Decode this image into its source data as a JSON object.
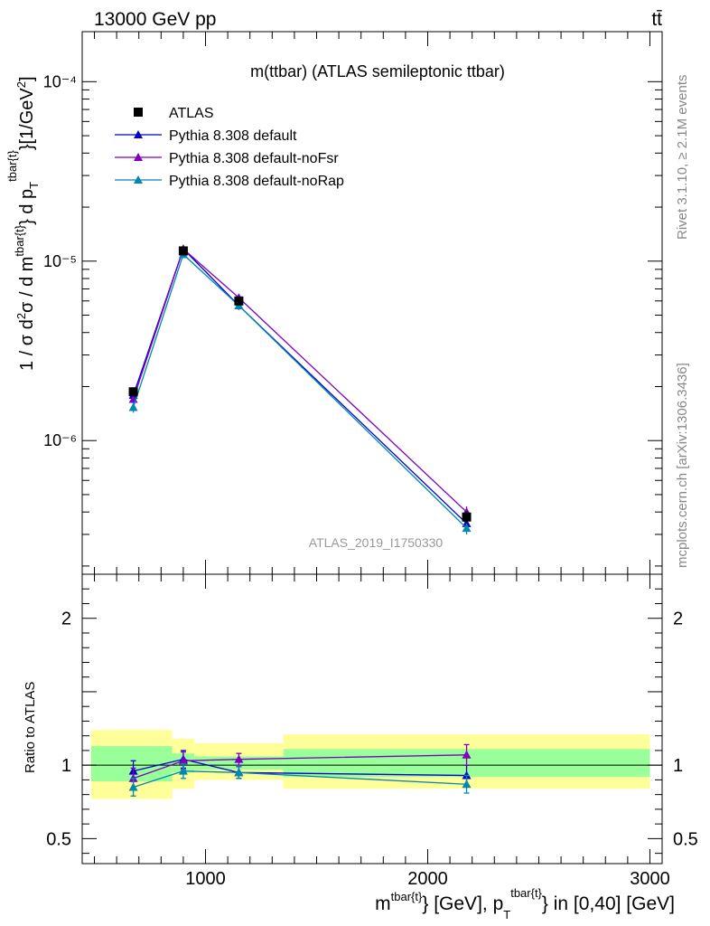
{
  "header": {
    "left": "13000 GeV pp",
    "right": "tt̄"
  },
  "side_text": {
    "rivet": "Rivet 3.1.10, ≥ 2.1M events",
    "mcplots": "mcplots.cern.ch [arXiv:1306.3436]"
  },
  "chart_data": [
    {
      "type": "line",
      "panel": "main",
      "title": "m(ttbar) (ATLAS semileptonic ttbar)",
      "watermark": "ATLAS_2019_I1750330",
      "ylabel": "1 / σ d²σ / d m^tbar{t} d p_T^tbar{t} [1/GeV²]",
      "yscale": "log",
      "ylim": [
        1.8e-07,
        0.00019
      ],
      "y_major_ticks": [
        {
          "value": 0.0001,
          "label": "10⁻⁴"
        },
        {
          "value": 1e-05,
          "label": "10⁻⁵"
        },
        {
          "value": 1e-06,
          "label": "10⁻⁶"
        }
      ],
      "xlim": [
        445,
        3055
      ],
      "legend_position": "top-left",
      "series": [
        {
          "name": "ATLAS",
          "color": "#000000",
          "marker": "square",
          "x": [
            675,
            900,
            1150,
            2175
          ],
          "y": [
            1.87e-06,
            1.14e-05,
            6e-06,
            3.75e-07
          ],
          "yerr": [
            6e-08,
            5e-07,
            3e-07,
            3e-08
          ]
        },
        {
          "name": "Pythia 8.308 default",
          "color": "#0000cc",
          "marker": "triangle",
          "x": [
            675,
            900,
            1150,
            2175
          ],
          "y": [
            1.79e-06,
            1.17e-05,
            5.65e-06,
            3.45e-07
          ],
          "yerr": [
            1.2e-07,
            6e-07,
            3e-07,
            2.5e-08
          ]
        },
        {
          "name": "Pythia 8.308 default-noFsr",
          "color": "#7f00bf",
          "marker": "triangle",
          "x": [
            675,
            900,
            1150,
            2175
          ],
          "y": [
            1.7e-06,
            1.17e-05,
            6.25e-06,
            4e-07
          ],
          "yerr": [
            1.2e-07,
            6e-07,
            3e-07,
            3e-08
          ]
        },
        {
          "name": "Pythia 8.308 default-noRap",
          "color": "#0087b4",
          "marker": "triangle",
          "x": [
            675,
            900,
            1150,
            2175
          ],
          "y": [
            1.53e-06,
            1.09e-05,
            5.65e-06,
            3.25e-07
          ],
          "yerr": [
            1e-07,
            5e-07,
            3e-07,
            2.5e-08
          ]
        }
      ]
    },
    {
      "type": "line",
      "panel": "ratio",
      "ylabel": "Ratio to ATLAS",
      "xlabel": "m^tbar{t} [GeV], p_T^tbar{t} in [0,40] [GeV]",
      "ylim": [
        0.33,
        2.3
      ],
      "y_tick_labels": [
        {
          "value": 2,
          "label": "2"
        },
        {
          "value": 1,
          "label": "1"
        },
        {
          "value": 0.5,
          "label": "0.5"
        }
      ],
      "xlim": [
        445,
        3055
      ],
      "x_tick_labels": [
        {
          "value": 1000,
          "label": "1000"
        },
        {
          "value": 2000,
          "label": "2000"
        },
        {
          "value": 3000,
          "label": "3000"
        }
      ],
      "reference_line": 1,
      "uncertainty_bands": [
        {
          "x_low": 485,
          "x_high": 850,
          "inner": [
            0.89,
            1.13
          ],
          "outer": [
            0.77,
            1.24
          ]
        },
        {
          "x_low": 850,
          "x_high": 950,
          "inner": [
            0.95,
            1.08
          ],
          "outer": [
            0.84,
            1.18
          ]
        },
        {
          "x_low": 950,
          "x_high": 1350,
          "inner": [
            0.97,
            1.06
          ],
          "outer": [
            0.9,
            1.15
          ]
        },
        {
          "x_low": 1350,
          "x_high": 3000,
          "inner": [
            0.92,
            1.11
          ],
          "outer": [
            0.84,
            1.21
          ]
        }
      ],
      "band_colors": {
        "inner": "#99ff99",
        "outer": "#ffff99"
      },
      "series": [
        {
          "name": "Pythia 8.308 default",
          "color": "#0000cc",
          "x": [
            675,
            900,
            1150,
            2175
          ],
          "y": [
            0.96,
            1.04,
            0.95,
            0.93
          ],
          "yerr": [
            0.07,
            0.06,
            0.04,
            0.07
          ]
        },
        {
          "name": "Pythia 8.308 default-noFsr",
          "color": "#7f00bf",
          "x": [
            675,
            900,
            1150,
            2175
          ],
          "y": [
            0.91,
            1.03,
            1.04,
            1.07
          ],
          "yerr": [
            0.07,
            0.06,
            0.04,
            0.07
          ]
        },
        {
          "name": "Pythia 8.308 default-noRap",
          "color": "#0087b4",
          "x": [
            675,
            900,
            1150,
            2175
          ],
          "y": [
            0.85,
            0.96,
            0.95,
            0.87
          ],
          "yerr": [
            0.06,
            0.05,
            0.04,
            0.06
          ]
        }
      ]
    }
  ]
}
